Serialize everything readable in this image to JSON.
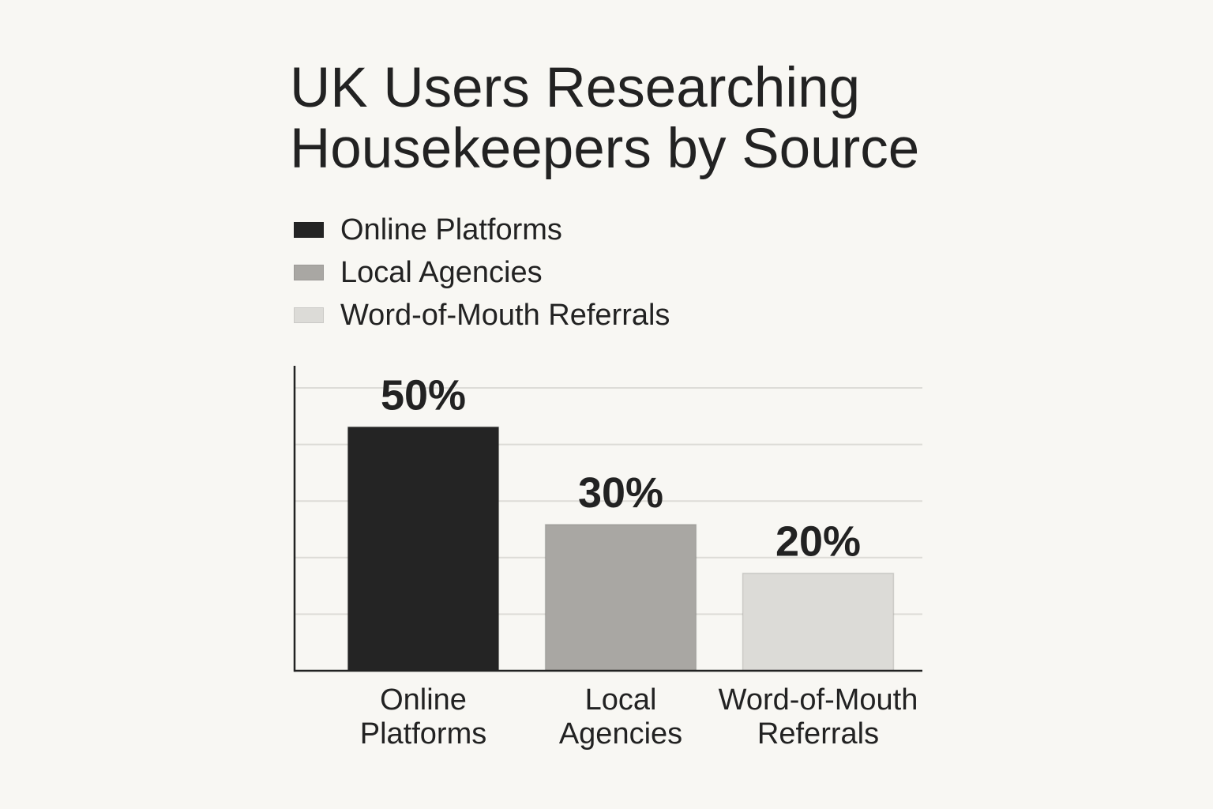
{
  "chart_data": {
    "type": "bar",
    "title": "UK Users Researching Housekeepers by Source",
    "categories": [
      "Online Platforms",
      "Local Agencies",
      "Word-of-Mouth Referrals"
    ],
    "values": [
      50,
      30,
      20
    ],
    "value_labels": [
      "50%",
      "30%",
      "20%"
    ],
    "colors": [
      "#242424",
      "#a9a7a3",
      "#dcdbd7"
    ],
    "ylim": [
      0,
      58
    ],
    "grid": true,
    "legend": {
      "position": "top-left",
      "entries": [
        "Online Platforms",
        "Local Agencies",
        "Word-of-Mouth Referrals"
      ]
    }
  }
}
